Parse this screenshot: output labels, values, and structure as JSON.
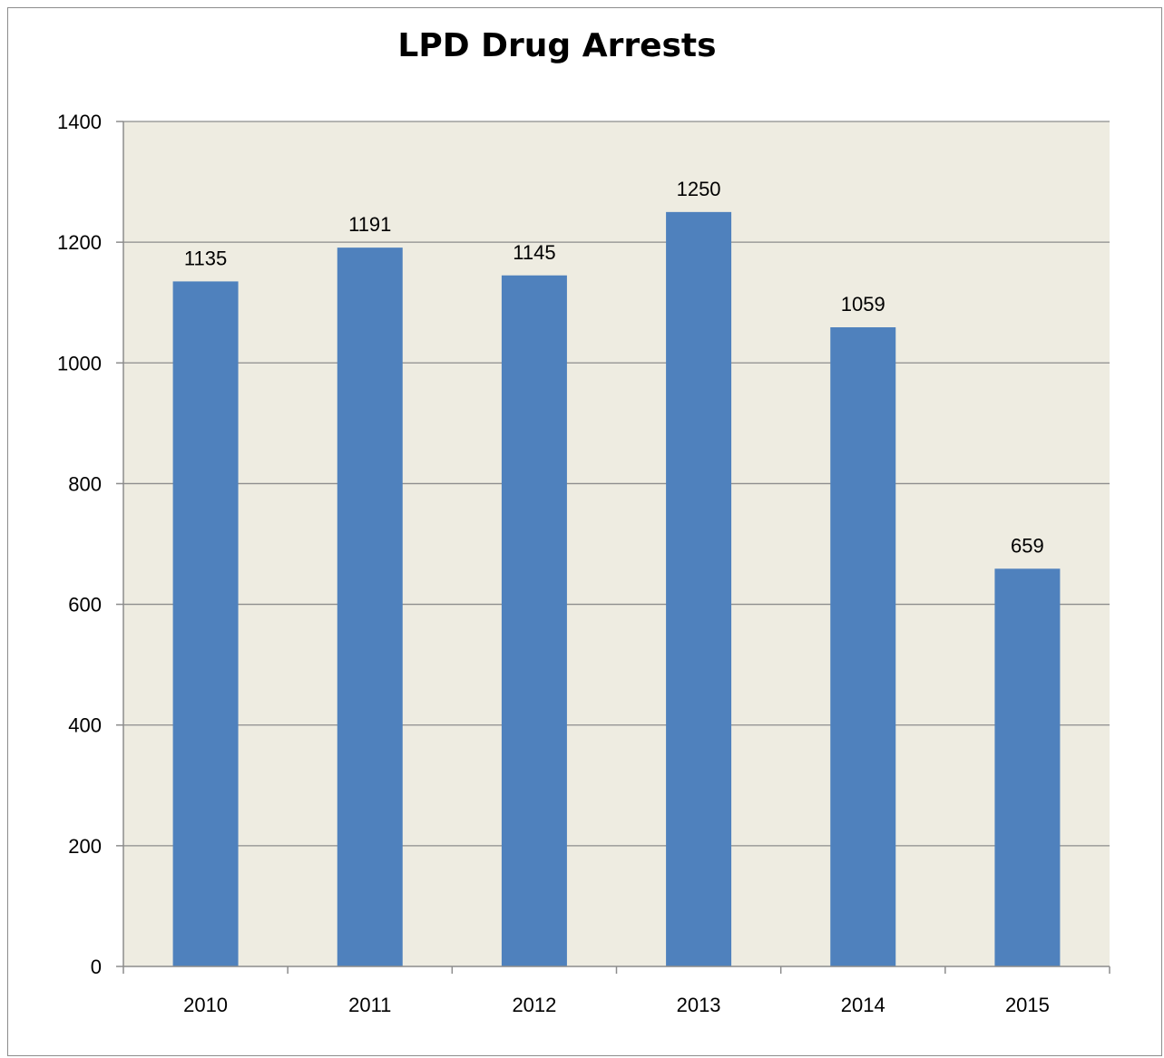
{
  "chart_data": {
    "type": "bar",
    "title": "LPD Drug Arrests",
    "categories": [
      "2010",
      "2011",
      "2012",
      "2013",
      "2014",
      "2015"
    ],
    "values": [
      1135,
      1191,
      1145,
      1250,
      1059,
      659
    ],
    "xlabel": "",
    "ylabel": "",
    "ylim": [
      0,
      1400
    ],
    "yticks": [
      0,
      200,
      400,
      600,
      800,
      1000,
      1200,
      1400
    ],
    "grid": true,
    "legend": "none",
    "data_labels": true,
    "colors": {
      "bar": "#4f81bd",
      "plot_background": "#eeece1",
      "gridline": "#8c8c8c",
      "axis": "#8c8c8c"
    }
  }
}
